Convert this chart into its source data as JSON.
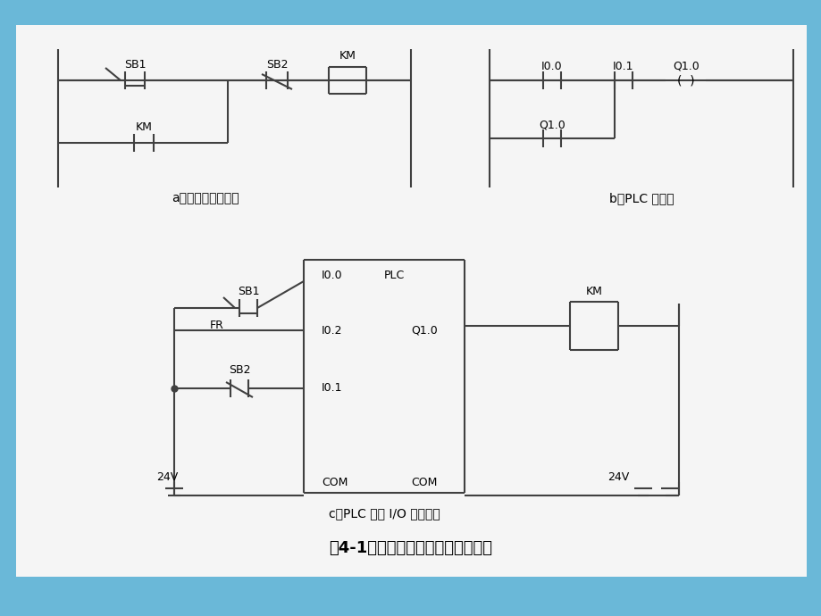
{
  "bg_color": "#6ab8d8",
  "white_bg": "#f5f5f5",
  "line_color": "#404040",
  "title_a": "a）继电器控制电路",
  "title_b": "b）PLC 梯形图",
  "title_c": "c）PLC 外部 I/O 接口电路",
  "main_title": "图4-1继电器电路转换为梯形图程序"
}
